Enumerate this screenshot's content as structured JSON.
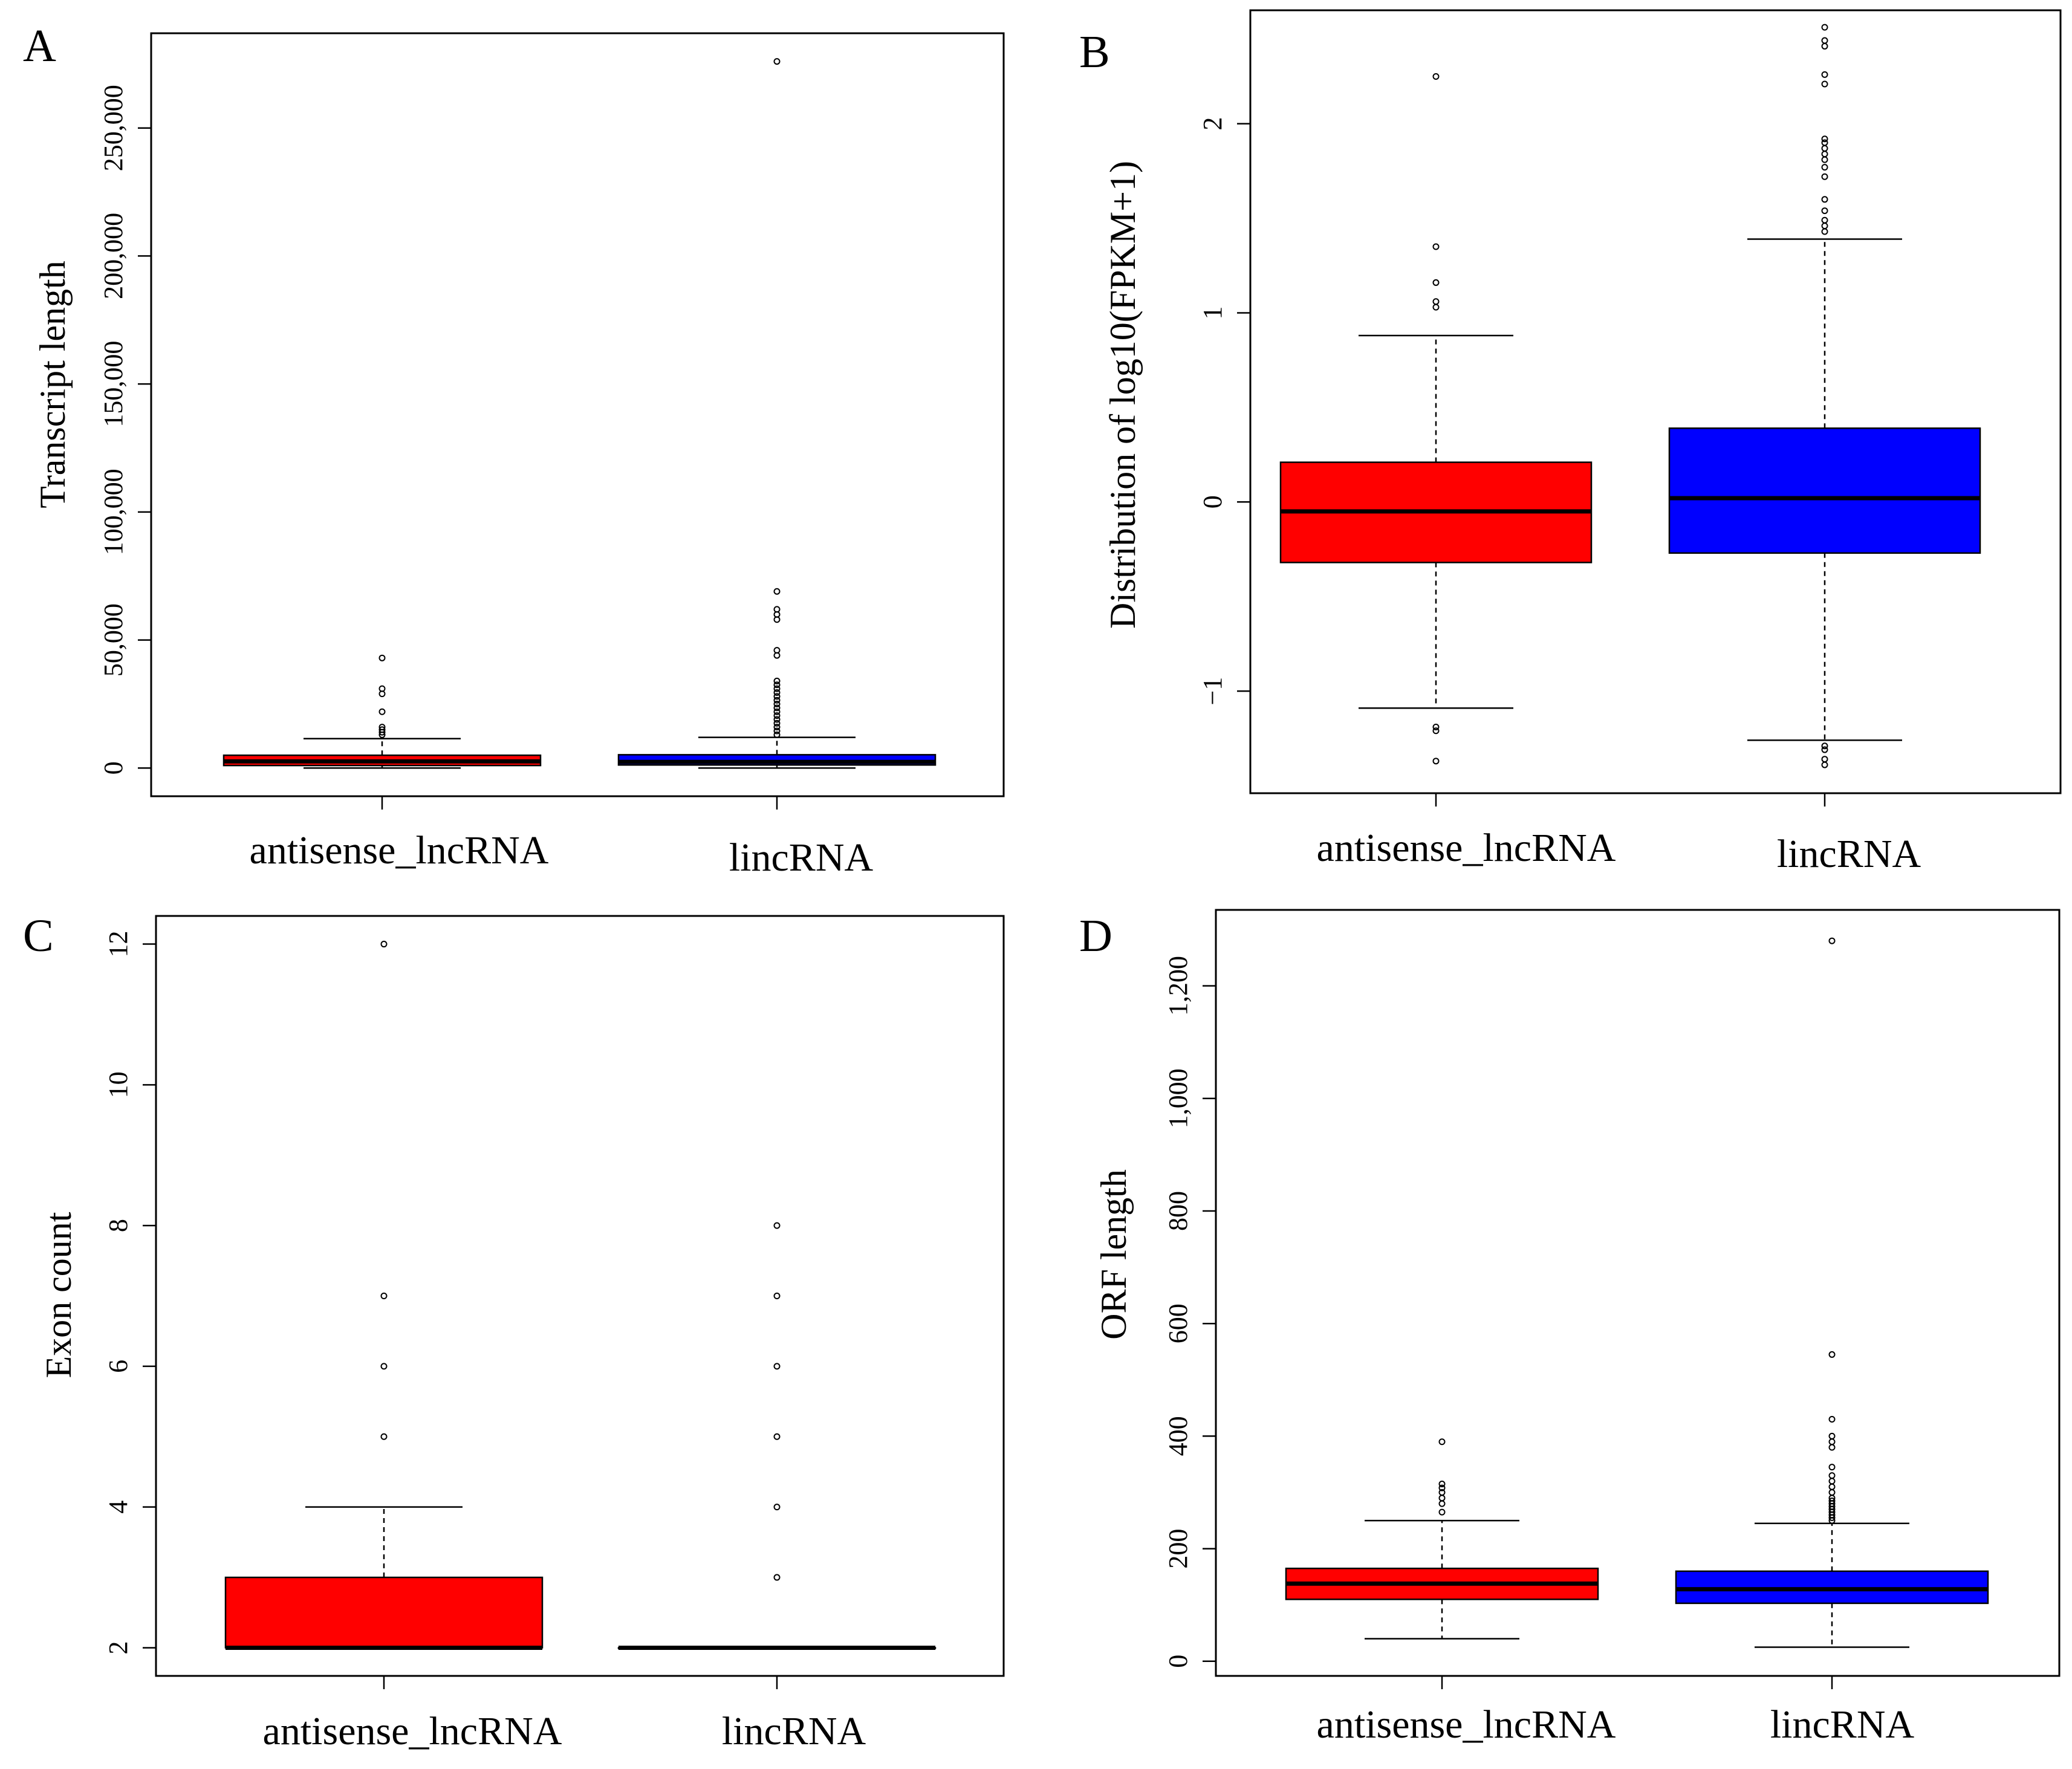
{
  "figure": {
    "panels": [
      "A",
      "B",
      "C",
      "D"
    ]
  },
  "colors": {
    "antisense_lncRNA": "#ff0000",
    "lincRNA": "#0000ff",
    "axis": "#000000",
    "background": "#ffffff"
  },
  "chart_data": [
    {
      "panel": "A",
      "type": "boxplot",
      "title": "",
      "xlabel": "",
      "ylabel": "Transcript length",
      "categories": [
        "antisense_lncRNA",
        "lincRNA"
      ],
      "ylim": [
        -11000,
        287000
      ],
      "yticks": [
        0,
        50000,
        100000,
        150000,
        200000,
        250000
      ],
      "ytick_labels": [
        "0",
        "50,000",
        "100,000",
        "150,000",
        "200,000",
        "250,000"
      ],
      "boxes": [
        {
          "name": "antisense_lncRNA",
          "color": "#ff0000",
          "whisker_low": 0,
          "q1": 1000,
          "median": 2600,
          "q3": 5000,
          "whisker_high": 11500,
          "outliers": [
            13000,
            14000,
            15000,
            16000,
            22000,
            29000,
            31000,
            43000
          ]
        },
        {
          "name": "lincRNA",
          "color": "#0000ff",
          "whisker_low": 0,
          "q1": 1200,
          "median": 2400,
          "q3": 5200,
          "whisker_high": 12000,
          "outliers": [
            13000,
            14500,
            16000,
            17500,
            19000,
            20500,
            22000,
            23500,
            25000,
            26500,
            28000,
            29500,
            31000,
            32500,
            34000,
            44000,
            46000,
            58000,
            60000,
            62000,
            69000,
            276000
          ]
        }
      ]
    },
    {
      "panel": "B",
      "type": "boxplot",
      "title": "",
      "xlabel": "",
      "ylabel": "Distribution of log10(FPKM+1)",
      "categories": [
        "antisense_lncRNA",
        "lincRNA"
      ],
      "ylim": [
        -1.54,
        2.6
      ],
      "yticks": [
        -1,
        0,
        1,
        2
      ],
      "ytick_labels": [
        "−1",
        "0",
        "1",
        "2"
      ],
      "boxes": [
        {
          "name": "antisense_lncRNA",
          "color": "#ff0000",
          "whisker_low": -1.09,
          "q1": -0.32,
          "median": -0.05,
          "q3": 0.21,
          "whisker_high": 0.88,
          "outliers": [
            1.03,
            1.06,
            1.16,
            1.35,
            2.25,
            -1.19,
            -1.21,
            -1.37
          ]
        },
        {
          "name": "lincRNA",
          "color": "#0000ff",
          "whisker_low": -1.26,
          "q1": -0.27,
          "median": 0.02,
          "q3": 0.39,
          "whisker_high": 1.39,
          "outliers": [
            1.43,
            1.46,
            1.49,
            1.54,
            1.6,
            1.72,
            1.77,
            1.81,
            1.84,
            1.87,
            1.9,
            1.92,
            2.21,
            2.26,
            2.41,
            2.44,
            2.51,
            -1.29,
            -1.31,
            -1.36,
            -1.39
          ]
        }
      ]
    },
    {
      "panel": "C",
      "type": "boxplot",
      "title": "",
      "xlabel": "",
      "ylabel": "Exon count",
      "categories": [
        "antisense_lncRNA",
        "lincRNA"
      ],
      "ylim": [
        1.6,
        12.4
      ],
      "yticks": [
        2,
        4,
        6,
        8,
        10,
        12
      ],
      "ytick_labels": [
        "2",
        "4",
        "6",
        "8",
        "10",
        "12"
      ],
      "boxes": [
        {
          "name": "antisense_lncRNA",
          "color": "#ff0000",
          "whisker_low": 2,
          "q1": 2,
          "median": 2,
          "q3": 3,
          "whisker_high": 4,
          "outliers": [
            5,
            6,
            7,
            12
          ]
        },
        {
          "name": "lincRNA",
          "color": "#0000ff",
          "whisker_low": 2,
          "q1": 2,
          "median": 2,
          "q3": 2,
          "whisker_high": 2,
          "outliers": [
            3,
            4,
            5,
            6,
            7,
            8
          ]
        }
      ]
    },
    {
      "panel": "D",
      "type": "boxplot",
      "title": "",
      "xlabel": "",
      "ylabel": "ORF length",
      "categories": [
        "antisense_lncRNA",
        "lincRNA"
      ],
      "ylim": [
        -26,
        1335
      ],
      "yticks": [
        0,
        200,
        400,
        600,
        800,
        1000,
        1200
      ],
      "ytick_labels": [
        "0",
        "200",
        "400",
        "600",
        "800",
        "1,000",
        "1,200"
      ],
      "boxes": [
        {
          "name": "antisense_lncRNA",
          "color": "#ff0000",
          "whisker_low": 40,
          "q1": 110,
          "median": 138,
          "q3": 165,
          "whisker_high": 250,
          "outliers": [
            265,
            280,
            290,
            300,
            308,
            315,
            390
          ]
        },
        {
          "name": "lincRNA",
          "color": "#0000ff",
          "whisker_low": 25,
          "q1": 103,
          "median": 128,
          "q3": 160,
          "whisker_high": 245,
          "outliers": [
            250,
            255,
            260,
            265,
            270,
            275,
            280,
            285,
            290,
            300,
            310,
            320,
            330,
            345,
            380,
            390,
            400,
            430,
            545,
            1280
          ]
        }
      ]
    }
  ]
}
